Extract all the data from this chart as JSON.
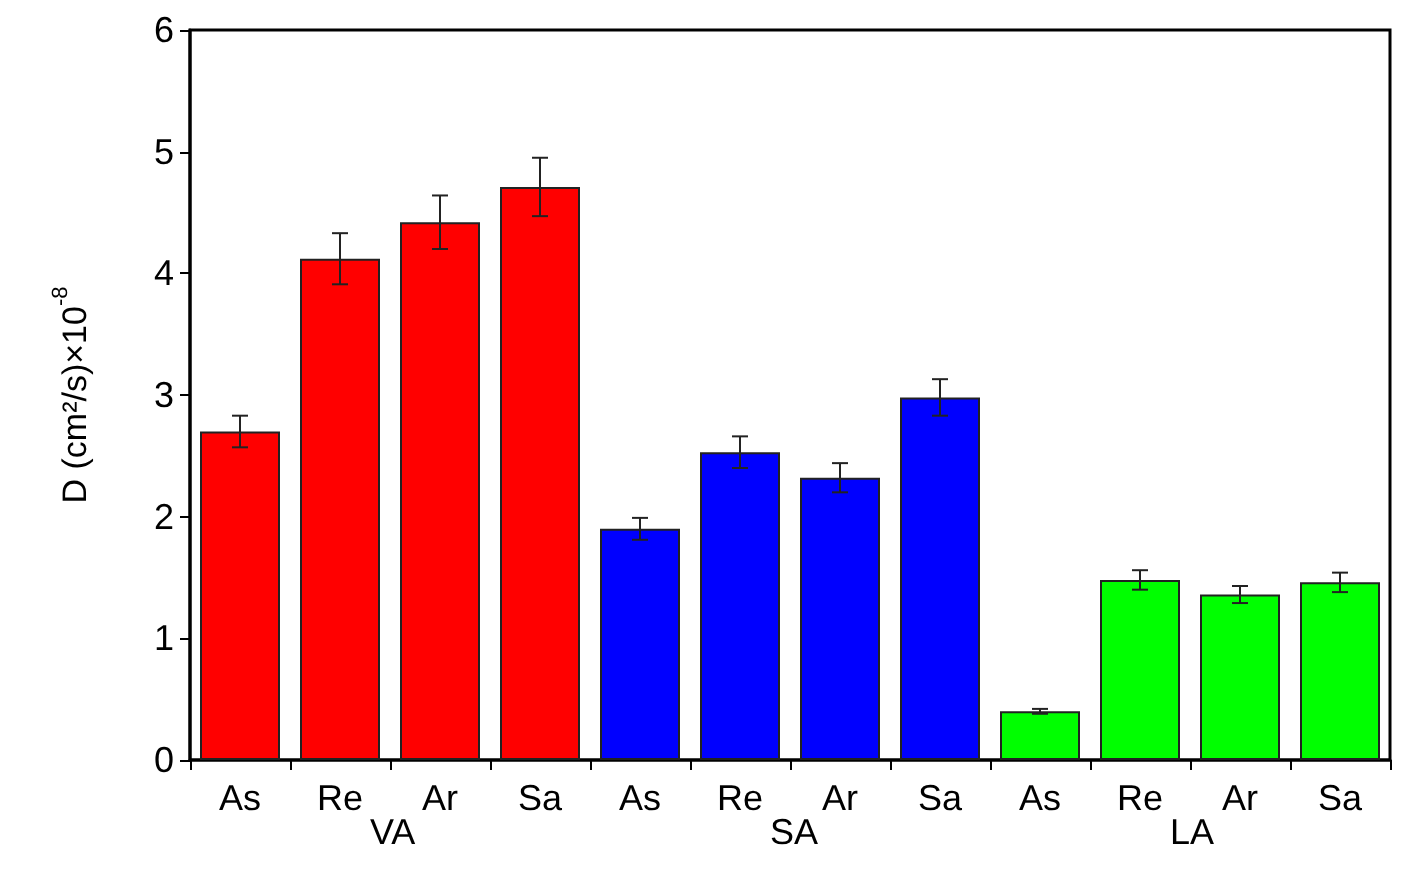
{
  "chart_data": {
    "type": "bar",
    "categories": [
      "As",
      "Re",
      "Ar",
      "Sa",
      "As",
      "Re",
      "Ar",
      "Sa",
      "As",
      "Re",
      "Ar",
      "Sa"
    ],
    "values": [
      2.7,
      4.12,
      4.42,
      4.71,
      1.9,
      2.53,
      2.32,
      2.98,
      0.4,
      1.48,
      1.36,
      1.46
    ],
    "errors": [
      0.13,
      0.21,
      0.22,
      0.24,
      0.09,
      0.13,
      0.12,
      0.15,
      0.02,
      0.08,
      0.07,
      0.08
    ],
    "colors": [
      "#ff0000",
      "#ff0000",
      "#ff0000",
      "#ff0000",
      "#0000ff",
      "#0000ff",
      "#0000ff",
      "#0000ff",
      "#00ff00",
      "#00ff00",
      "#00ff00",
      "#00ff00"
    ],
    "ylabel": "D (cm²/s)×10$^{-8}$",
    "ylim": [
      0,
      6
    ],
    "yticks": [
      0,
      1,
      2,
      3,
      4,
      5,
      6
    ],
    "annotations": [
      "VA",
      "SA",
      "LA"
    ],
    "grid": false
  }
}
